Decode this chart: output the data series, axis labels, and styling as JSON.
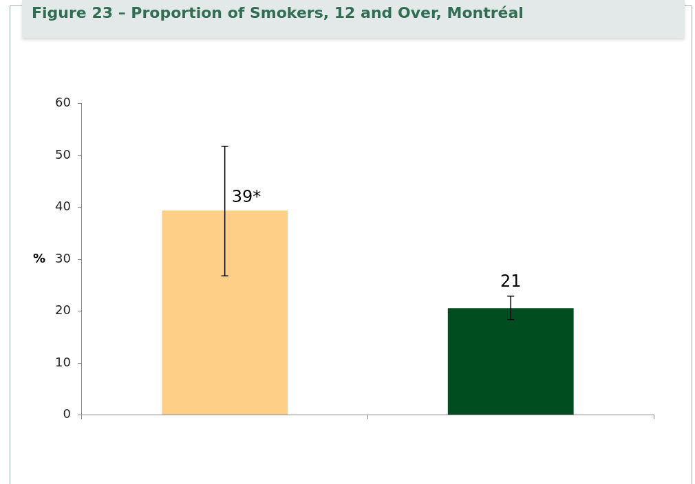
{
  "chart_data": {
    "type": "bar",
    "title": "Figure 23 – Proportion of Smokers, 12 and Over, Montréal",
    "ylabel": "%",
    "categories": [
      null,
      null
    ],
    "values": [
      39.4,
      20.6
    ],
    "colors": [
      "#fed087",
      "#004d1f"
    ],
    "errors": [
      [
        26.8,
        51.8
      ],
      [
        18.4,
        22.9
      ]
    ],
    "value_labels": [
      "39*",
      "21"
    ],
    "ylim": [
      0,
      60
    ],
    "yticks": [
      0,
      10,
      20,
      30,
      40,
      50,
      60
    ],
    "grid": false,
    "legend": false
  }
}
